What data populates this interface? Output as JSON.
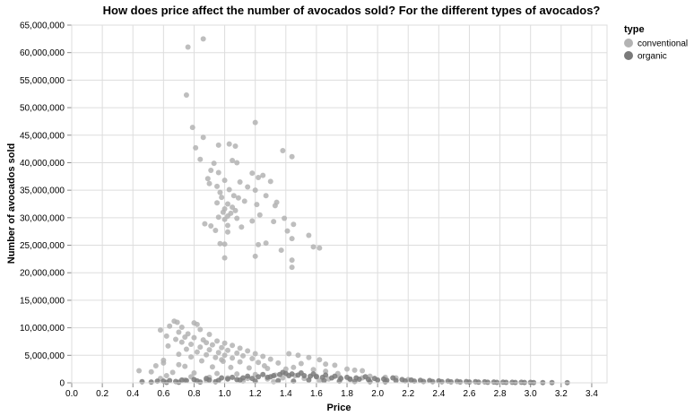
{
  "chart_data": {
    "type": "scatter",
    "title": "How does price affect the number of avocados sold? For the different types of avocados?",
    "xlabel": "Price",
    "ylabel": "Number of avocados sold",
    "xlim": [
      0,
      3.5
    ],
    "ylim": [
      0,
      65000000
    ],
    "x_ticks": [
      "0.0",
      "0.2",
      "0.4",
      "0.6",
      "0.8",
      "1.0",
      "1.2",
      "1.4",
      "1.6",
      "1.8",
      "2.0",
      "2.2",
      "2.4",
      "2.6",
      "2.8",
      "3.0",
      "3.2",
      "3.4"
    ],
    "y_ticks": [
      "0",
      "5,000,000",
      "10,000,000",
      "15,000,000",
      "20,000,000",
      "25,000,000",
      "30,000,000",
      "35,000,000",
      "40,000,000",
      "45,000,000",
      "50,000,000",
      "55,000,000",
      "60,000,000",
      "65,000,000"
    ],
    "grid": true,
    "legend": {
      "title": "type",
      "position": "right"
    },
    "series": [
      {
        "name": "conventional",
        "color": "#b3b3b3",
        "points": [
          [
            0.76,
            61000000
          ],
          [
            0.86,
            62500000
          ],
          [
            0.75,
            52300000
          ],
          [
            1.2,
            47300000
          ],
          [
            0.79,
            46400000
          ],
          [
            0.86,
            44600000
          ],
          [
            0.96,
            43200000
          ],
          [
            1.03,
            43400000
          ],
          [
            1.07,
            43000000
          ],
          [
            0.81,
            42700000
          ],
          [
            1.38,
            42200000
          ],
          [
            1.44,
            41100000
          ],
          [
            0.84,
            40600000
          ],
          [
            1.05,
            40400000
          ],
          [
            1.08,
            40000000
          ],
          [
            0.93,
            39900000
          ],
          [
            0.91,
            38600000
          ],
          [
            0.96,
            38200000
          ],
          [
            1.18,
            38100000
          ],
          [
            1.25,
            37700000
          ],
          [
            0.89,
            37100000
          ],
          [
            1.22,
            37300000
          ],
          [
            1.0,
            36800000
          ],
          [
            1.1,
            36500000
          ],
          [
            1.3,
            36600000
          ],
          [
            0.9,
            36200000
          ],
          [
            0.95,
            35700000
          ],
          [
            1.15,
            35600000
          ],
          [
            1.03,
            35100000
          ],
          [
            1.2,
            35000000
          ],
          [
            0.97,
            34600000
          ],
          [
            1.06,
            34000000
          ],
          [
            1.27,
            34000000
          ],
          [
            0.98,
            33700000
          ],
          [
            1.09,
            33600000
          ],
          [
            1.13,
            33000000
          ],
          [
            1.34,
            32800000
          ],
          [
            0.95,
            32700000
          ],
          [
            1.02,
            32500000
          ],
          [
            1.21,
            32400000
          ],
          [
            1.33,
            32200000
          ],
          [
            1.05,
            31900000
          ],
          [
            1.0,
            31600000
          ],
          [
            1.07,
            31300000
          ],
          [
            0.99,
            31000000
          ],
          [
            1.04,
            30800000
          ],
          [
            1.23,
            30500000
          ],
          [
            1.02,
            30300000
          ],
          [
            0.96,
            30100000
          ],
          [
            1.08,
            29900000
          ],
          [
            1.0,
            29700000
          ],
          [
            1.18,
            29400000
          ],
          [
            1.32,
            29300000
          ],
          [
            0.87,
            28900000
          ],
          [
            0.91,
            28500000
          ],
          [
            1.02,
            28600000
          ],
          [
            1.11,
            28300000
          ],
          [
            1.45,
            28800000
          ],
          [
            0.94,
            27700000
          ],
          [
            1.02,
            27400000
          ],
          [
            1.39,
            29900000
          ],
          [
            1.41,
            27600000
          ],
          [
            1.55,
            26800000
          ],
          [
            1.22,
            25100000
          ],
          [
            1.27,
            25400000
          ],
          [
            0.97,
            25300000
          ],
          [
            1.0,
            25200000
          ],
          [
            1.44,
            26200000
          ],
          [
            1.58,
            24700000
          ],
          [
            1.62,
            24500000
          ],
          [
            1.37,
            24100000
          ],
          [
            1.2,
            23000000
          ],
          [
            1.0,
            22700000
          ],
          [
            1.44,
            22300000
          ],
          [
            1.44,
            21000000
          ],
          [
            0.67,
            11200000
          ],
          [
            0.69,
            11000000
          ],
          [
            0.8,
            10900000
          ],
          [
            0.82,
            10600000
          ],
          [
            0.64,
            10300000
          ],
          [
            0.72,
            10100000
          ],
          [
            0.58,
            9600000
          ],
          [
            0.84,
            9700000
          ],
          [
            0.7,
            9200000
          ],
          [
            0.76,
            8900000
          ],
          [
            0.9,
            8800000
          ],
          [
            0.62,
            8500000
          ],
          [
            0.74,
            8300000
          ],
          [
            0.8,
            8200000
          ],
          [
            0.68,
            7900000
          ],
          [
            0.86,
            7800000
          ],
          [
            0.95,
            7600000
          ],
          [
            0.72,
            7400000
          ],
          [
            0.88,
            7300000
          ],
          [
            1.0,
            7200000
          ],
          [
            0.78,
            7000000
          ],
          [
            0.92,
            6900000
          ],
          [
            1.05,
            6800000
          ],
          [
            0.63,
            6700000
          ],
          [
            0.84,
            6500000
          ],
          [
            0.98,
            6400000
          ],
          [
            1.1,
            6300000
          ],
          [
            0.75,
            6100000
          ],
          [
            0.9,
            6000000
          ],
          [
            1.02,
            5900000
          ],
          [
            1.15,
            5800000
          ],
          [
            0.82,
            5600000
          ],
          [
            0.96,
            5500000
          ],
          [
            1.08,
            5400000
          ],
          [
            1.2,
            5300000
          ],
          [
            0.7,
            5200000
          ],
          [
            0.88,
            5100000
          ],
          [
            1.0,
            5000000
          ],
          [
            1.12,
            4900000
          ],
          [
            1.25,
            4800000
          ],
          [
            0.78,
            4700000
          ],
          [
            0.94,
            4600000
          ],
          [
            1.05,
            4500000
          ],
          [
            1.18,
            4400000
          ],
          [
            1.3,
            4300000
          ],
          [
            1.42,
            5300000
          ],
          [
            1.48,
            5000000
          ],
          [
            1.55,
            4600000
          ],
          [
            1.62,
            4200000
          ],
          [
            0.6,
            4100000
          ],
          [
            0.85,
            4000000
          ],
          [
            0.99,
            3900000
          ],
          [
            1.1,
            3800000
          ],
          [
            1.22,
            3700000
          ],
          [
            1.35,
            3600000
          ],
          [
            1.5,
            3500000
          ],
          [
            1.66,
            3400000
          ],
          [
            1.72,
            3200000
          ],
          [
            0.55,
            3100000
          ],
          [
            0.74,
            3000000
          ],
          [
            0.92,
            2900000
          ],
          [
            1.04,
            2800000
          ],
          [
            1.16,
            2700000
          ],
          [
            1.28,
            2600000
          ],
          [
            1.4,
            2500000
          ],
          [
            1.58,
            2400000
          ],
          [
            1.8,
            2500000
          ],
          [
            1.85,
            2300000
          ],
          [
            1.9,
            2200000
          ],
          [
            0.44,
            2200000
          ],
          [
            0.52,
            2000000
          ],
          [
            0.66,
            1900000
          ],
          [
            0.8,
            1800000
          ],
          [
            0.95,
            1700000
          ],
          [
            1.08,
            1600000
          ],
          [
            1.2,
            1500000
          ],
          [
            1.33,
            1400000
          ],
          [
            1.46,
            1300000
          ],
          [
            1.6,
            1200000
          ],
          [
            1.75,
            1100000
          ],
          [
            1.95,
            1200000
          ],
          [
            2.05,
            1000000
          ],
          [
            2.12,
            900000
          ],
          [
            0.62,
            1300000
          ],
          [
            0.78,
            1100000
          ],
          [
            0.9,
            1000000
          ],
          [
            1.02,
            900000
          ],
          [
            1.15,
            800000
          ],
          [
            1.28,
            700000
          ],
          [
            1.38,
            900000
          ],
          [
            1.52,
            800000
          ],
          [
            1.68,
            700000
          ],
          [
            1.82,
            600000
          ],
          [
            0.6,
            3600000
          ],
          [
            0.7,
            3300000
          ],
          [
            0.98,
            4200000
          ],
          [
            1.26,
            3100000
          ],
          [
            1.45,
            2800000
          ],
          [
            1.66,
            2100000
          ],
          [
            1.74,
            1700000
          ],
          [
            0.58,
            800000
          ],
          [
            0.74,
            500000
          ],
          [
            0.88,
            400000
          ],
          [
            1.12,
            300000
          ],
          [
            1.32,
            200000
          ],
          [
            1.62,
            400000
          ],
          [
            1.9,
            900000
          ],
          [
            2.2,
            600000
          ]
        ]
      },
      {
        "name": "organic",
        "color": "#7a7a7a",
        "points": [
          [
            0.46,
            200000
          ],
          [
            0.52,
            150000
          ],
          [
            0.6,
            300000
          ],
          [
            0.68,
            250000
          ],
          [
            0.75,
            400000
          ],
          [
            0.82,
            350000
          ],
          [
            0.9,
            500000
          ],
          [
            0.96,
            450000
          ],
          [
            1.02,
            700000
          ],
          [
            1.08,
            600000
          ],
          [
            1.12,
            900000
          ],
          [
            1.18,
            800000
          ],
          [
            1.22,
            1100000
          ],
          [
            1.28,
            1000000
          ],
          [
            1.32,
            1300000
          ],
          [
            1.36,
            1500000
          ],
          [
            1.4,
            1700000
          ],
          [
            1.44,
            1600000
          ],
          [
            1.48,
            1400000
          ],
          [
            1.52,
            1300000
          ],
          [
            1.56,
            1200000
          ],
          [
            1.6,
            1100000
          ],
          [
            1.64,
            1000000
          ],
          [
            1.7,
            900000
          ],
          [
            1.76,
            800000
          ],
          [
            1.82,
            700000
          ],
          [
            1.88,
            650000
          ],
          [
            1.94,
            600000
          ],
          [
            2.0,
            500000
          ],
          [
            2.06,
            450000
          ],
          [
            2.12,
            400000
          ],
          [
            2.18,
            350000
          ],
          [
            2.24,
            300000
          ],
          [
            2.3,
            250000
          ],
          [
            2.36,
            220000
          ],
          [
            2.42,
            200000
          ],
          [
            2.48,
            180000
          ],
          [
            2.54,
            160000
          ],
          [
            2.6,
            140000
          ],
          [
            2.66,
            120000
          ],
          [
            2.72,
            100000
          ],
          [
            2.78,
            90000
          ],
          [
            2.84,
            80000
          ],
          [
            2.9,
            70000
          ],
          [
            2.96,
            60000
          ],
          [
            3.02,
            50000
          ],
          [
            3.08,
            45000
          ],
          [
            3.14,
            40000
          ],
          [
            3.24,
            30000
          ],
          [
            1.15,
            1200000
          ],
          [
            1.25,
            1500000
          ],
          [
            1.3,
            1100000
          ],
          [
            1.38,
            1900000
          ],
          [
            1.42,
            1300000
          ],
          [
            1.5,
            1800000
          ],
          [
            1.58,
            1600000
          ],
          [
            1.66,
            1400000
          ],
          [
            0.98,
            900000
          ],
          [
            1.05,
            1000000
          ],
          [
            0.88,
            800000
          ],
          [
            0.8,
            600000
          ],
          [
            0.72,
            500000
          ],
          [
            0.64,
            400000
          ],
          [
            0.56,
            300000
          ],
          [
            1.72,
            1200000
          ],
          [
            1.8,
            1000000
          ],
          [
            1.86,
            900000
          ],
          [
            1.92,
            1100000
          ],
          [
            1.98,
            800000
          ],
          [
            2.04,
            700000
          ],
          [
            2.1,
            900000
          ],
          [
            2.16,
            600000
          ],
          [
            2.22,
            500000
          ],
          [
            2.28,
            450000
          ],
          [
            2.34,
            400000
          ],
          [
            2.4,
            350000
          ],
          [
            2.46,
            300000
          ],
          [
            2.52,
            260000
          ],
          [
            2.58,
            220000
          ],
          [
            2.64,
            200000
          ],
          [
            2.7,
            180000
          ],
          [
            2.76,
            150000
          ],
          [
            2.82,
            130000
          ],
          [
            2.88,
            110000
          ],
          [
            2.94,
            100000
          ],
          [
            3.0,
            90000
          ],
          [
            1.1,
            500000
          ],
          [
            1.2,
            300000
          ],
          [
            1.35,
            400000
          ],
          [
            1.45,
            300000
          ],
          [
            1.55,
            500000
          ],
          [
            1.65,
            400000
          ],
          [
            1.75,
            300000
          ],
          [
            1.85,
            250000
          ],
          [
            1.95,
            200000
          ],
          [
            2.05,
            180000
          ],
          [
            0.94,
            200000
          ],
          [
            0.84,
            150000
          ],
          [
            0.7,
            100000
          ],
          [
            0.62,
            80000
          ]
        ]
      }
    ]
  }
}
